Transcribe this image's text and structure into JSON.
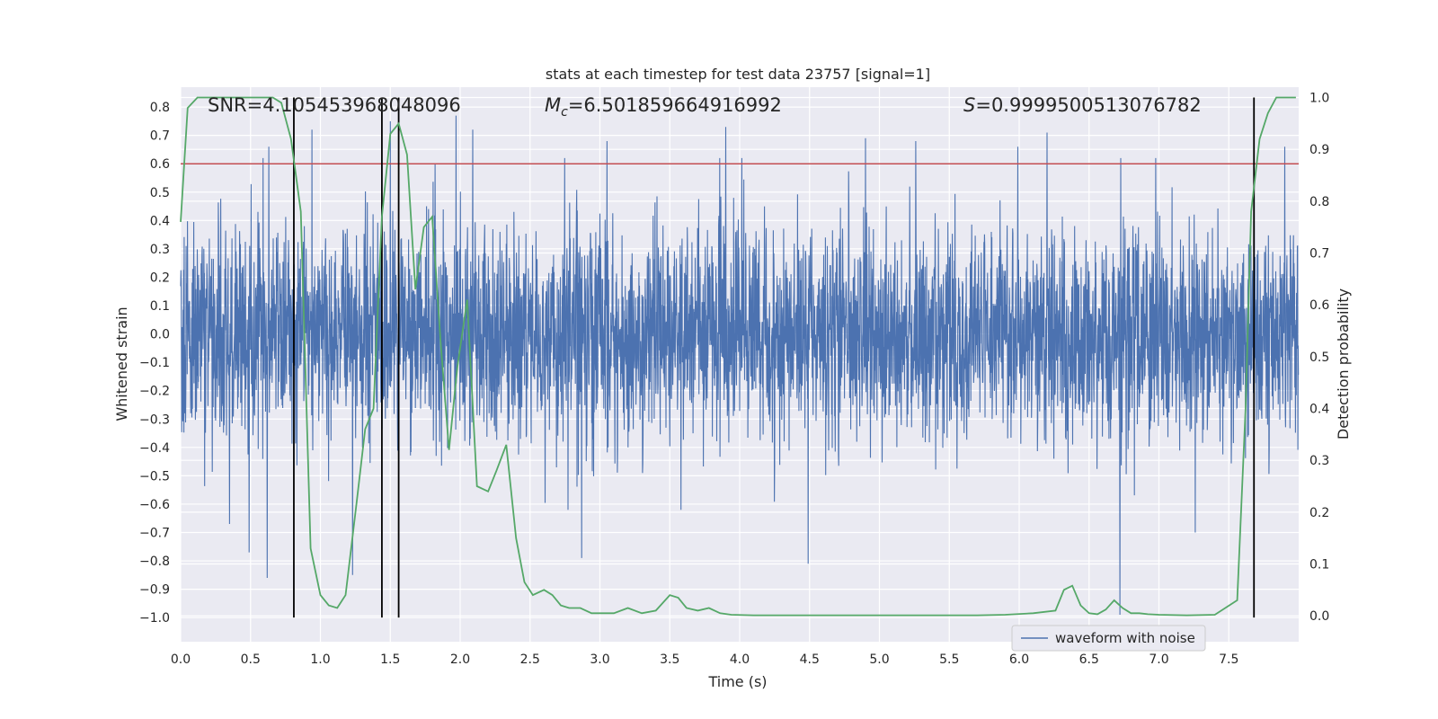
{
  "chart_data": {
    "type": "line",
    "title": "stats at each timestep for test data 23757 [signal=1]",
    "xlabel": "Time (s)",
    "ylabel": "Whitened strain",
    "y2label": "Detection probability",
    "xlim": [
      0.0,
      8.0
    ],
    "ylim": [
      -1.085,
      0.87
    ],
    "y2lim": [
      -0.05,
      1.02
    ],
    "xticks": [
      "0.0",
      "0.5",
      "1.0",
      "1.5",
      "2.0",
      "2.5",
      "3.0",
      "3.5",
      "4.0",
      "4.5",
      "5.0",
      "5.5",
      "6.0",
      "6.5",
      "7.0",
      "7.5"
    ],
    "xtick_values": [
      0.0,
      0.5,
      1.0,
      1.5,
      2.0,
      2.5,
      3.0,
      3.5,
      4.0,
      4.5,
      5.0,
      5.5,
      6.0,
      6.5,
      7.0,
      7.5
    ],
    "yticks": [
      "0.8",
      "0.7",
      "0.6",
      "0.5",
      "0.4",
      "0.3",
      "0.2",
      "0.1",
      "0.0",
      "−0.1",
      "−0.2",
      "−0.3",
      "−0.4",
      "−0.5",
      "−0.6",
      "−0.7",
      "−0.8",
      "−0.9",
      "−1.0"
    ],
    "ytick_values": [
      0.8,
      0.7,
      0.6,
      0.5,
      0.4,
      0.3,
      0.2,
      0.1,
      0.0,
      -0.1,
      -0.2,
      -0.3,
      -0.4,
      -0.5,
      -0.6,
      -0.7,
      -0.8,
      -0.9,
      -1.0
    ],
    "y2ticks": [
      "1.0",
      "0.9",
      "0.8",
      "0.7",
      "0.6",
      "0.5",
      "0.4",
      "0.3",
      "0.2",
      "0.1",
      "0.0"
    ],
    "y2tick_values": [
      1.0,
      0.9,
      0.8,
      0.7,
      0.6,
      0.5,
      0.4,
      0.3,
      0.2,
      0.1,
      0.0
    ],
    "annotations": {
      "snr": "SNR=4.105453968048096",
      "mc_prefix": "M",
      "mc_sub": "c",
      "mc_value": "=6.501859664916992",
      "s_prefix": "S",
      "s_value": "=0.9999500513076782"
    },
    "threshold": {
      "axis": "y",
      "value": 0.6,
      "color": "#c44e52"
    },
    "vertical_lines": {
      "x": [
        0.81,
        1.44,
        1.56,
        7.68
      ],
      "ymin": -1.0,
      "ymax_axis2": 1.0,
      "color": "#000000"
    },
    "series": [
      {
        "name": "waveform with noise",
        "axis": "left",
        "color": "#4c72b0",
        "kind": "noise",
        "amplitude_std": 0.19,
        "spikes": [
          {
            "x": 0.35,
            "y": -0.67
          },
          {
            "x": 0.49,
            "y": -0.77
          },
          {
            "x": 0.62,
            "y": -0.86
          },
          {
            "x": 0.63,
            "y": 0.66
          },
          {
            "x": 0.94,
            "y": 0.72
          },
          {
            "x": 1.23,
            "y": -0.85
          },
          {
            "x": 1.5,
            "y": 0.75
          },
          {
            "x": 1.97,
            "y": 0.77
          },
          {
            "x": 2.09,
            "y": 0.72
          },
          {
            "x": 2.87,
            "y": -0.79
          },
          {
            "x": 3.05,
            "y": 0.68
          },
          {
            "x": 3.9,
            "y": 0.73
          },
          {
            "x": 4.49,
            "y": -0.81
          },
          {
            "x": 4.9,
            "y": 0.69
          },
          {
            "x": 5.26,
            "y": 0.68
          },
          {
            "x": 5.99,
            "y": 0.66
          },
          {
            "x": 6.2,
            "y": 0.71
          },
          {
            "x": 6.72,
            "y": -0.99
          },
          {
            "x": 7.26,
            "y": -0.7
          },
          {
            "x": 7.9,
            "y": 0.66
          }
        ]
      },
      {
        "name": "Detection probability",
        "axis": "right",
        "color": "#55a868",
        "x": [
          0.0,
          0.05,
          0.12,
          0.2,
          0.3,
          0.4,
          0.5,
          0.6,
          0.66,
          0.72,
          0.79,
          0.86,
          0.93,
          1.0,
          1.06,
          1.12,
          1.18,
          1.26,
          1.32,
          1.38,
          1.44,
          1.5,
          1.56,
          1.62,
          1.68,
          1.74,
          1.8,
          1.86,
          1.92,
          1.98,
          2.05,
          2.12,
          2.2,
          2.26,
          2.33,
          2.4,
          2.46,
          2.52,
          2.6,
          2.66,
          2.72,
          2.78,
          2.86,
          2.94,
          3.02,
          3.1,
          3.2,
          3.3,
          3.4,
          3.5,
          3.56,
          3.62,
          3.7,
          3.78,
          3.86,
          3.94,
          4.1,
          4.3,
          4.5,
          4.7,
          4.9,
          5.1,
          5.3,
          5.5,
          5.7,
          5.9,
          6.1,
          6.26,
          6.32,
          6.38,
          6.44,
          6.5,
          6.56,
          6.62,
          6.68,
          6.74,
          6.8,
          6.86,
          6.92,
          7.0,
          7.2,
          7.4,
          7.56,
          7.62,
          7.66,
          7.72,
          7.78,
          7.84,
          7.9,
          7.98
        ],
        "y": [
          0.76,
          0.98,
          1.0,
          1.0,
          1.0,
          1.0,
          1.0,
          1.0,
          1.0,
          0.99,
          0.92,
          0.78,
          0.13,
          0.04,
          0.02,
          0.015,
          0.04,
          0.22,
          0.36,
          0.4,
          0.77,
          0.93,
          0.95,
          0.89,
          0.63,
          0.75,
          0.77,
          0.53,
          0.32,
          0.48,
          0.61,
          0.25,
          0.24,
          0.28,
          0.33,
          0.15,
          0.065,
          0.04,
          0.05,
          0.04,
          0.02,
          0.015,
          0.015,
          0.005,
          0.005,
          0.005,
          0.015,
          0.005,
          0.01,
          0.04,
          0.035,
          0.015,
          0.01,
          0.015,
          0.005,
          0.002,
          0.001,
          0.001,
          0.001,
          0.001,
          0.001,
          0.001,
          0.001,
          0.001,
          0.001,
          0.002,
          0.005,
          0.01,
          0.05,
          0.058,
          0.02,
          0.005,
          0.003,
          0.012,
          0.03,
          0.015,
          0.005,
          0.005,
          0.003,
          0.002,
          0.001,
          0.002,
          0.03,
          0.4,
          0.78,
          0.92,
          0.97,
          1.0,
          1.0,
          1.0
        ]
      }
    ],
    "legend": {
      "position": "lower-right",
      "entries": [
        "waveform with noise"
      ]
    },
    "grid": true,
    "style": {
      "plot_bg": "#eaeaf2",
      "grid_color": "#ffffff"
    }
  }
}
